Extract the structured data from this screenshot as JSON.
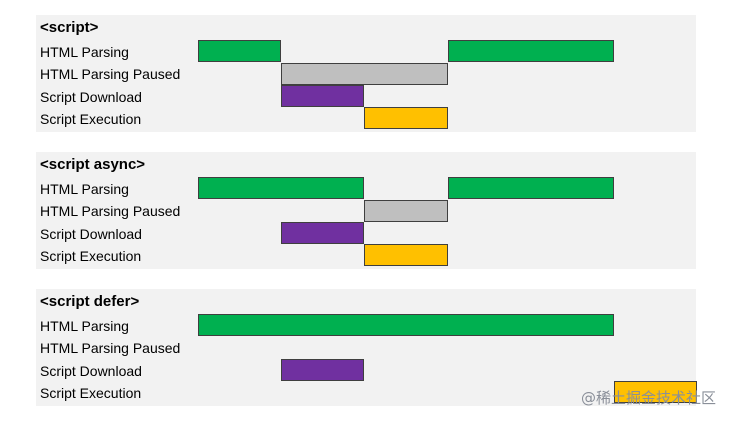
{
  "colors": {
    "html_parsing": "#00b050",
    "html_parsing_paused": "#bfbfbf",
    "script_download": "#7030a0",
    "script_execution": "#ffc000",
    "panel_background": "#f2f2f2"
  },
  "row_labels": [
    "HTML Parsing",
    "HTML Parsing Paused",
    "Script Download",
    "Script Execution"
  ],
  "diagram_data": {
    "type": "timeline",
    "panels": [
      {
        "title": "<script>",
        "rows": [
          {
            "label": "HTML Parsing",
            "color_key": "html_parsing",
            "segments": [
              [
                0,
                1
              ],
              [
                3,
                5
              ]
            ]
          },
          {
            "label": "HTML Parsing Paused",
            "color_key": "html_parsing_paused",
            "segments": [
              [
                1,
                3
              ]
            ]
          },
          {
            "label": "Script Download",
            "color_key": "script_download",
            "segments": [
              [
                1,
                2
              ]
            ]
          },
          {
            "label": "Script Execution",
            "color_key": "script_execution",
            "segments": [
              [
                2,
                3
              ]
            ]
          }
        ]
      },
      {
        "title": "<script async>",
        "rows": [
          {
            "label": "HTML Parsing",
            "color_key": "html_parsing",
            "segments": [
              [
                0,
                2
              ],
              [
                3,
                5
              ]
            ]
          },
          {
            "label": "HTML Parsing Paused",
            "color_key": "html_parsing_paused",
            "segments": [
              [
                2,
                3
              ]
            ]
          },
          {
            "label": "Script Download",
            "color_key": "script_download",
            "segments": [
              [
                1,
                2
              ]
            ]
          },
          {
            "label": "Script Execution",
            "color_key": "script_execution",
            "segments": [
              [
                2,
                3
              ]
            ]
          }
        ]
      },
      {
        "title": "<script defer>",
        "rows": [
          {
            "label": "HTML Parsing",
            "color_key": "html_parsing",
            "segments": [
              [
                0,
                5
              ]
            ]
          },
          {
            "label": "HTML Parsing Paused",
            "color_key": "html_parsing_paused",
            "segments": []
          },
          {
            "label": "Script Download",
            "color_key": "script_download",
            "segments": [
              [
                1,
                2
              ]
            ]
          },
          {
            "label": "Script Execution",
            "color_key": "script_execution",
            "segments": [
              [
                5,
                6
              ]
            ]
          }
        ]
      }
    ]
  },
  "watermark": "@稀土掘金技术社区"
}
